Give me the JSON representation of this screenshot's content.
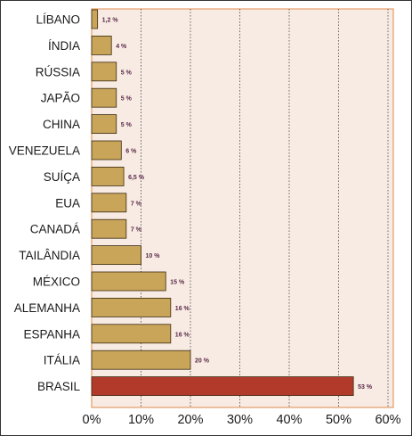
{
  "chart_data": {
    "type": "bar",
    "orientation": "horizontal",
    "categories": [
      "LÍBANO",
      "ÍNDIA",
      "RÚSSIA",
      "JAPÃO",
      "CHINA",
      "VENEZUELA",
      "SUÍÇA",
      "EUA",
      "CANADÁ",
      "TAILÂNDIA",
      "MÉXICO",
      "ALEMANHA",
      "ESPANHA",
      "ITÁLIA",
      "BRASIL"
    ],
    "values": [
      1.2,
      4,
      5,
      5,
      5,
      6,
      6.5,
      7,
      7,
      10,
      15,
      16,
      16,
      20,
      53
    ],
    "value_labels": [
      "1,2 %",
      "4 %",
      "5 %",
      "5 %",
      "5 %",
      "6 %",
      "6,5 %",
      "7 %",
      "7 %",
      "10 %",
      "15 %",
      "16 %",
      "16 %",
      "20 %",
      "53 %"
    ],
    "x_ticks": [
      0,
      10,
      20,
      30,
      40,
      50,
      60
    ],
    "x_tick_labels": [
      "0%",
      "10%",
      "20%",
      "30%",
      "40%",
      "50%",
      "60%"
    ],
    "xlim": [
      0,
      60
    ],
    "grid": "vertical dotted",
    "legend": "none",
    "title": "",
    "xlabel": "",
    "ylabel": "",
    "colors": {
      "bar": "#c9a55a",
      "bar_highlight": "#b23a2a",
      "plot_background": "#f8ebe3",
      "plot_border": "#e08a4a",
      "grid": "#444444",
      "value_label": "#5a2a4a",
      "text": "#1a1a1a"
    },
    "highlight_category": "BRASIL"
  }
}
